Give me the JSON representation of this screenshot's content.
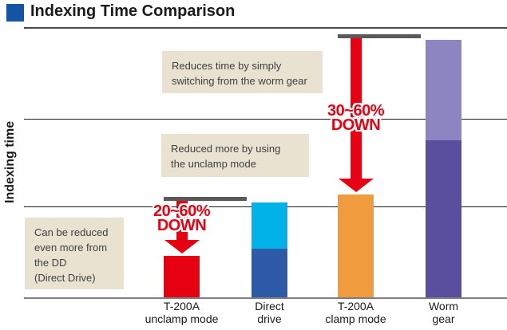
{
  "title": "Indexing Time Comparison",
  "ylabel": "Indexing time",
  "palette": {
    "title_square_blue": "#1553a3",
    "arrow_red": "#e60012",
    "reference_marker_gray": "#595959",
    "axis_gray": "#7f7f7f",
    "gridline_black": "#1a1a1a",
    "note_background": "#e9e2d1",
    "note_text": "#3f3f3f"
  },
  "annotations": [
    {
      "text": "Reduces time by simply\nswitching from  the worm gear"
    },
    {
      "text": "Reduced more by using\nthe unclamp mode"
    },
    {
      "text": "Can be reduced\neven more from\nthe DD\n(Direct Drive)"
    }
  ],
  "chart_data": {
    "type": "bar",
    "stacked": true,
    "title": "Indexing Time Comparison",
    "ylabel": "Indexing time",
    "y_axis_note": "qualitative axis, no tick labels; values are relative indexing time with Worm gear total = 100",
    "ylim": [
      0,
      105
    ],
    "grid": "on",
    "grid_levels": [
      35,
      69
    ],
    "legend_position": "none",
    "categories": [
      "T-200A\nunclamp mode",
      "Direct\ndrive",
      "T-200A\nclamp mode",
      "Worm\ngear"
    ],
    "bars": [
      {
        "category": "T-200A unclamp mode",
        "segments": [
          {
            "value": 16,
            "color": "#e60012"
          }
        ]
      },
      {
        "category": "Direct drive",
        "segments": [
          {
            "value": 19,
            "color": "#2e5ba8"
          },
          {
            "value": 18,
            "color": "#00b2e8"
          }
        ]
      },
      {
        "category": "T-200A clamp mode",
        "segments": [
          {
            "value": 40,
            "color": "#f09c3e"
          }
        ]
      },
      {
        "category": "Worm gear",
        "segments": [
          {
            "value": 61,
            "color": "#5a4f9e"
          },
          {
            "value": 39,
            "color": "#8c85c1"
          }
        ]
      }
    ],
    "reduction_arrows": [
      {
        "target_bar": 0,
        "reference_bar": 1,
        "label_top": "20~60%",
        "label_bottom": "DOWN"
      },
      {
        "target_bar": 2,
        "reference_bar": 3,
        "label_top": "30~60%",
        "label_bottom": "DOWN"
      }
    ]
  }
}
